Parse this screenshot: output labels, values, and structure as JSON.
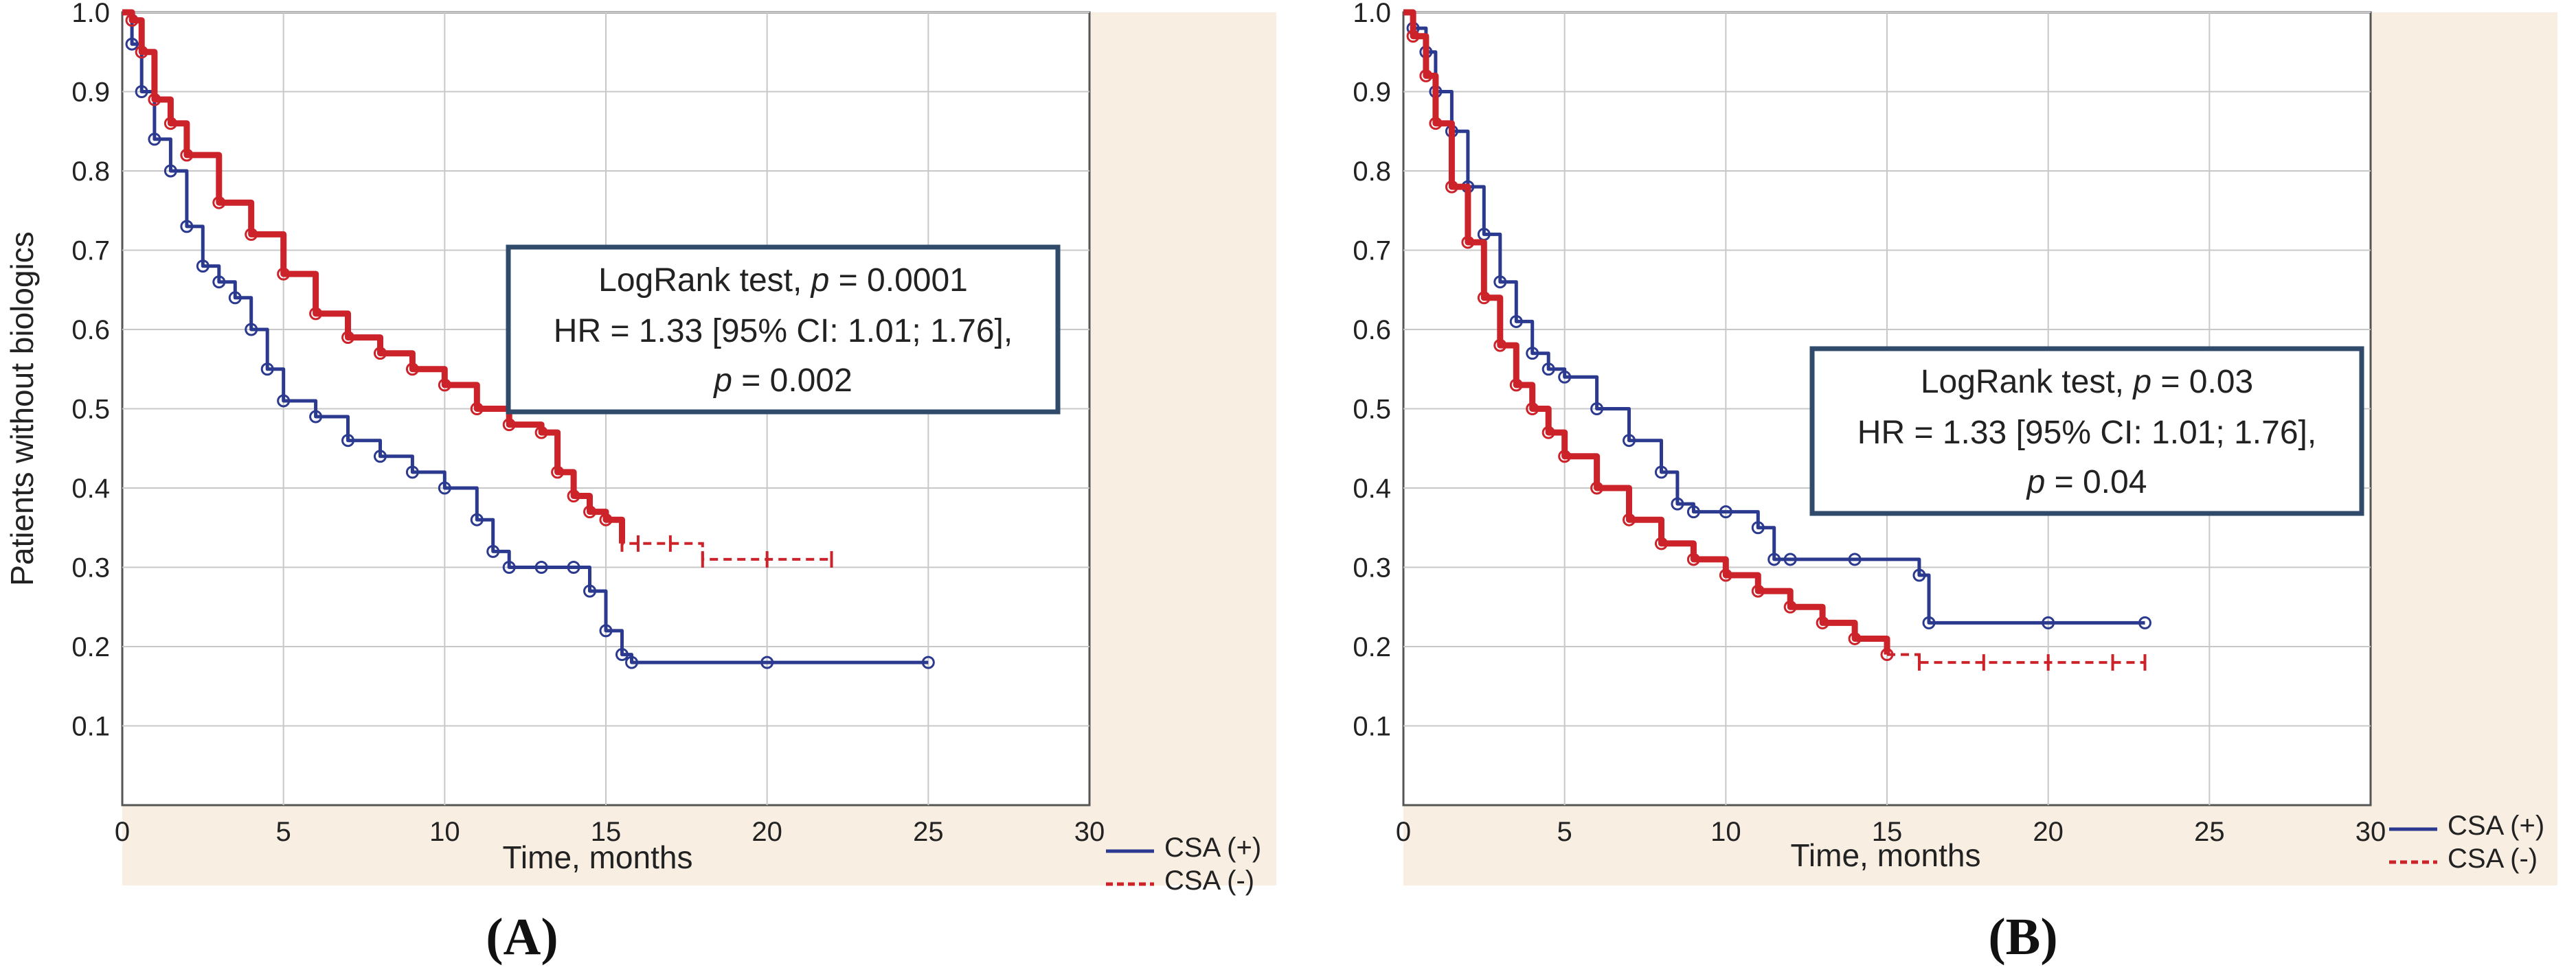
{
  "chart_data": [
    {
      "panel": "(A)",
      "type": "line",
      "subtype": "kaplan-meier",
      "xlabel": "Time, months",
      "ylabel": "Patients without biologics",
      "xlim": [
        0,
        30
      ],
      "ylim": [
        0,
        1.0
      ],
      "xticks": [
        0,
        5,
        10,
        15,
        20,
        25,
        30
      ],
      "yticks": [
        0.1,
        0.2,
        0.3,
        0.4,
        0.5,
        0.6,
        0.7,
        0.8,
        0.9,
        1.0
      ],
      "grid": true,
      "legend_position": "bottom-right",
      "annotation": {
        "line1_text": "LogRank test, ",
        "line1_p": "p",
        "line1_value": " = 0.0001",
        "line2": "HR = 1.33 [95% CI: 1.01; 1.76],",
        "line3_p": "p",
        "line3_value": " = 0.002"
      },
      "series": [
        {
          "name": "CSA (+)",
          "color": "#2b3a8f",
          "style": "solid",
          "x": [
            0,
            0.3,
            0.6,
            1.0,
            1.5,
            2.0,
            2.5,
            3.0,
            3.5,
            4.0,
            4.5,
            5.0,
            6.0,
            7.0,
            8.0,
            9.0,
            10.0,
            11.0,
            11.5,
            12.0,
            13.0,
            14.0,
            14.5,
            15.0,
            15.5,
            15.8,
            20.0,
            25.0
          ],
          "y": [
            1.0,
            0.96,
            0.9,
            0.84,
            0.8,
            0.73,
            0.68,
            0.66,
            0.64,
            0.6,
            0.55,
            0.51,
            0.49,
            0.46,
            0.44,
            0.42,
            0.4,
            0.36,
            0.32,
            0.3,
            0.3,
            0.3,
            0.27,
            0.22,
            0.19,
            0.18,
            0.18,
            0.18
          ]
        },
        {
          "name": "CSA (-)",
          "color": "#cc2229",
          "style": "solid-then-dashed",
          "x": [
            0,
            0.3,
            0.6,
            1.0,
            1.5,
            2.0,
            3.0,
            4.0,
            5.0,
            6.0,
            7.0,
            8.0,
            9.0,
            10.0,
            11.0,
            12.0,
            13.0,
            13.5,
            14.0,
            14.5,
            15.0,
            15.5,
            16.0,
            17.0,
            18.0,
            20.0,
            22.0
          ],
          "y": [
            1.0,
            0.99,
            0.95,
            0.89,
            0.86,
            0.82,
            0.76,
            0.72,
            0.67,
            0.62,
            0.59,
            0.57,
            0.55,
            0.53,
            0.5,
            0.48,
            0.47,
            0.42,
            0.39,
            0.37,
            0.36,
            0.33,
            0.33,
            0.33,
            0.31,
            0.31,
            0.31
          ],
          "dash_from_x": 15.5
        }
      ]
    },
    {
      "panel": "(B)",
      "type": "line",
      "subtype": "kaplan-meier",
      "xlabel": "Time, months",
      "ylabel": "",
      "xlim": [
        0,
        30
      ],
      "ylim": [
        0,
        1.0
      ],
      "xticks": [
        0,
        5,
        10,
        15,
        20,
        25,
        30
      ],
      "yticks": [
        0.1,
        0.2,
        0.3,
        0.4,
        0.5,
        0.6,
        0.7,
        0.8,
        0.9,
        1.0
      ],
      "grid": true,
      "legend_position": "bottom-right",
      "annotation": {
        "line1_text": "LogRank test, ",
        "line1_p": "p",
        "line1_value": " = 0.03",
        "line2": "HR = 1.33 [95% CI: 1.01; 1.76],",
        "line3_p": "p",
        "line3_value": " = 0.04"
      },
      "series": [
        {
          "name": "CSA (+)",
          "color": "#2b3a8f",
          "style": "solid",
          "x": [
            0,
            0.3,
            0.7,
            1.0,
            1.5,
            2.0,
            2.5,
            3.0,
            3.5,
            4.0,
            4.5,
            5.0,
            6.0,
            7.0,
            8.0,
            8.5,
            9.0,
            10.0,
            11.0,
            11.5,
            12.0,
            14.0,
            16.0,
            16.3,
            20.0,
            23.0
          ],
          "y": [
            1.0,
            0.98,
            0.95,
            0.9,
            0.85,
            0.78,
            0.72,
            0.66,
            0.61,
            0.57,
            0.55,
            0.54,
            0.5,
            0.46,
            0.42,
            0.38,
            0.37,
            0.37,
            0.35,
            0.31,
            0.31,
            0.31,
            0.29,
            0.23,
            0.23,
            0.23
          ]
        },
        {
          "name": "CSA (-)",
          "color": "#cc2229",
          "style": "solid-then-dashed",
          "x": [
            0,
            0.3,
            0.7,
            1.0,
            1.5,
            2.0,
            2.5,
            3.0,
            3.5,
            4.0,
            4.5,
            5.0,
            6.0,
            7.0,
            8.0,
            9.0,
            10.0,
            11.0,
            12.0,
            13.0,
            14.0,
            15.0,
            16.0,
            18.0,
            20.0,
            22.0,
            23.0
          ],
          "y": [
            1.0,
            0.97,
            0.92,
            0.86,
            0.78,
            0.71,
            0.64,
            0.58,
            0.53,
            0.5,
            0.47,
            0.44,
            0.4,
            0.36,
            0.33,
            0.31,
            0.29,
            0.27,
            0.25,
            0.23,
            0.21,
            0.19,
            0.18,
            0.18,
            0.18,
            0.18,
            0.18
          ],
          "dash_from_x": 15.5
        }
      ]
    }
  ]
}
